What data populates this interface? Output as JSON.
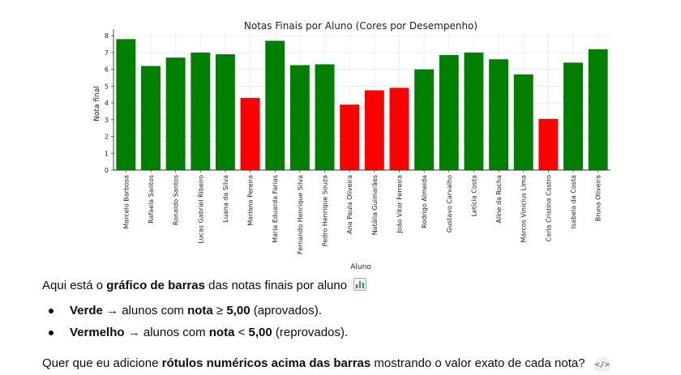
{
  "chart_data": {
    "type": "bar",
    "title": "Notas Finais por Aluno (Cores por Desempenho)",
    "xlabel": "Aluno",
    "ylabel": "Nota final",
    "ylim": [
      0,
      8.2
    ],
    "yticks": [
      "0",
      "1",
      "2",
      "3",
      "4",
      "5",
      "6",
      "7",
      "8"
    ],
    "grid": true,
    "categories": [
      "Marcelo Barbosa",
      "Rafaela Santos",
      "Ronaldo Santos",
      "Lucas Gabriel Ribeiro",
      "Luana da Silva",
      "Mariana Pereira",
      "Maria Eduarda Farias",
      "Fernando Henrique Silva",
      "Pedro Henrique Souza",
      "Ana Paula Oliveira",
      "Natália Guimarães",
      "João Vitor Ferreira",
      "Rodrigo Almeida",
      "Gustavo Carvalho",
      "Letícia Costa",
      "Aline da Rocha",
      "Marcos Vinicius Lima",
      "Carla Cristina Castro",
      "Isabela da Costa",
      "Bruna Oliveira"
    ],
    "values": [
      7.8,
      6.2,
      6.7,
      7.0,
      6.9,
      4.3,
      7.7,
      6.25,
      6.3,
      3.9,
      4.75,
      4.9,
      6.0,
      6.85,
      7.0,
      6.6,
      5.7,
      3.05,
      6.4,
      7.2
    ],
    "colors": {
      "approved": "#008000",
      "failed": "#ff0000",
      "threshold": 5
    }
  },
  "message": {
    "intro_prefix": "Aqui está o ",
    "intro_bold": "gráfico de barras",
    "intro_suffix": " das notas finais por aluno",
    "chart_emoji": "bar-chart-emoji",
    "bullets": [
      {
        "color_word": "Verde",
        "middle": " → alunos com ",
        "bold2": "nota",
        "op": " ≥ ",
        "bold3": "5,00",
        "end": " (aprovados)."
      },
      {
        "color_word": "Vermelho",
        "middle": " → alunos com ",
        "bold2": "nota",
        "op": " < ",
        "bold3": "5,00",
        "end": " (reprovados)."
      }
    ],
    "question_prefix": "Quer que eu adicione ",
    "question_bold": "rótulos numéricos acima das barras",
    "question_suffix": " mostrando o valor exato de cada nota?",
    "code_icon": "</>"
  }
}
